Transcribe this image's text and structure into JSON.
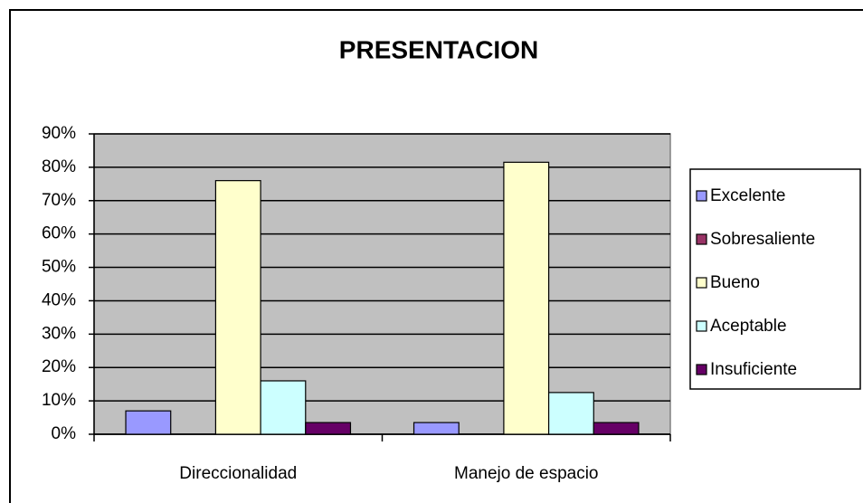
{
  "chart_data": {
    "type": "bar",
    "title": "PRESENTACION",
    "categories": [
      "Direccionalidad",
      "Manejo de espacio"
    ],
    "series": [
      {
        "name": "Excelente",
        "color": "#9999ff",
        "values": [
          7,
          3.5
        ]
      },
      {
        "name": "Sobresaliente",
        "color": "#993366",
        "values": [
          0,
          0
        ]
      },
      {
        "name": "Bueno",
        "color": "#ffffcc",
        "values": [
          76,
          81.5
        ]
      },
      {
        "name": "Aceptable",
        "color": "#ccffff",
        "values": [
          16,
          12.5
        ]
      },
      {
        "name": "Insuficiente",
        "color": "#660066",
        "values": [
          3.5,
          3.5
        ]
      }
    ],
    "ylim": [
      0,
      90
    ],
    "yticks": [
      {
        "value": 0,
        "label": "0%"
      },
      {
        "value": 10,
        "label": "10%"
      },
      {
        "value": 20,
        "label": "20%"
      },
      {
        "value": 30,
        "label": "30%"
      },
      {
        "value": 40,
        "label": "40%"
      },
      {
        "value": 50,
        "label": "50%"
      },
      {
        "value": 60,
        "label": "60%"
      },
      {
        "value": 70,
        "label": "70%"
      },
      {
        "value": 80,
        "label": "80%"
      },
      {
        "value": 90,
        "label": "90%"
      }
    ],
    "grid": true,
    "legend": "right",
    "plot_background": "#c0c0c0"
  }
}
